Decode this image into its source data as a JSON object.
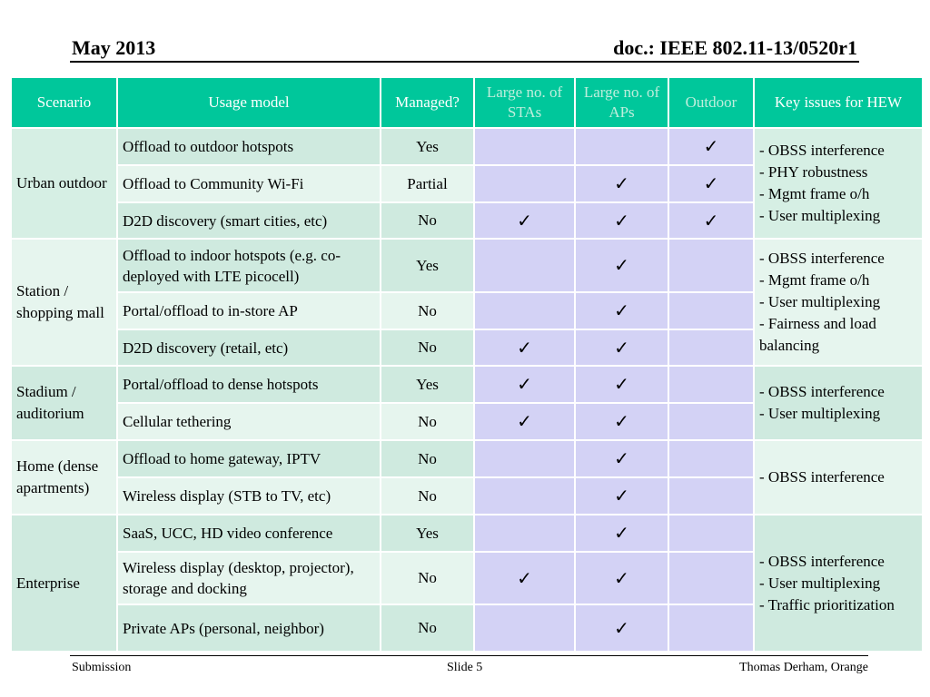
{
  "header": {
    "date": "May 2013",
    "doc": "doc.: IEEE 802.11-13/0520r1"
  },
  "footer": {
    "left": "Submission",
    "center": "Slide 5",
    "right": "Thomas Derham, Orange"
  },
  "table": {
    "columns": [
      "Scenario",
      "Usage model",
      "Managed?",
      "Large no. of STAs",
      "Large no. of APs",
      "Outdoor",
      "Key issues for HEW"
    ],
    "check_symbol": "✓",
    "groups": [
      {
        "scenario": "Urban outdoor",
        "key_issues": [
          "- OBSS interference",
          "- PHY robustness",
          "- Mgmt frame o/h",
          "- User multiplexing"
        ],
        "rows": [
          {
            "usage": "Offload to outdoor hotspots",
            "managed": "Yes",
            "stas": false,
            "aps": false,
            "outdoor": true
          },
          {
            "usage": "Offload to Community Wi-Fi",
            "managed": "Partial",
            "stas": false,
            "aps": true,
            "outdoor": true
          },
          {
            "usage": "D2D discovery (smart cities, etc)",
            "managed": "No",
            "stas": true,
            "aps": true,
            "outdoor": true
          }
        ]
      },
      {
        "scenario": "Station / shopping mall",
        "key_issues": [
          "- OBSS interference",
          "- Mgmt frame o/h",
          "- User multiplexing",
          "- Fairness and load balancing"
        ],
        "rows": [
          {
            "usage": "Offload to indoor hotspots (e.g. co-deployed with LTE picocell)",
            "managed": "Yes",
            "stas": false,
            "aps": true,
            "outdoor": false
          },
          {
            "usage": "Portal/offload to in-store AP",
            "managed": "No",
            "stas": false,
            "aps": true,
            "outdoor": false
          },
          {
            "usage": "D2D discovery (retail, etc)",
            "managed": "No",
            "stas": true,
            "aps": true,
            "outdoor": false
          }
        ]
      },
      {
        "scenario": "Stadium / auditorium",
        "key_issues": [
          "- OBSS interference",
          "- User multiplexing"
        ],
        "rows": [
          {
            "usage": "Portal/offload to dense hotspots",
            "managed": "Yes",
            "stas": true,
            "aps": true,
            "outdoor": false
          },
          {
            "usage": "Cellular tethering",
            "managed": "No",
            "stas": true,
            "aps": true,
            "outdoor": false
          }
        ]
      },
      {
        "scenario": "Home (dense apartments)",
        "key_issues": [
          "- OBSS interference"
        ],
        "rows": [
          {
            "usage": "Offload to home gateway, IPTV",
            "managed": "No",
            "stas": false,
            "aps": true,
            "outdoor": false
          },
          {
            "usage": "Wireless display (STB to TV, etc)",
            "managed": "No",
            "stas": false,
            "aps": true,
            "outdoor": false
          }
        ]
      },
      {
        "scenario": "Enterprise",
        "key_issues": [
          "- OBSS interference",
          "- User multiplexing",
          "- Traffic prioritization"
        ],
        "rows": [
          {
            "usage": "SaaS, UCC, HD video conference",
            "managed": "Yes",
            "stas": false,
            "aps": true,
            "outdoor": false
          },
          {
            "usage": "Wireless display (desktop, projector), storage and docking",
            "managed": "No",
            "stas": true,
            "aps": true,
            "outdoor": false
          },
          {
            "usage": "Private APs (personal, neighbor)",
            "managed": "No",
            "stas": false,
            "aps": true,
            "outdoor": false
          }
        ]
      }
    ]
  }
}
